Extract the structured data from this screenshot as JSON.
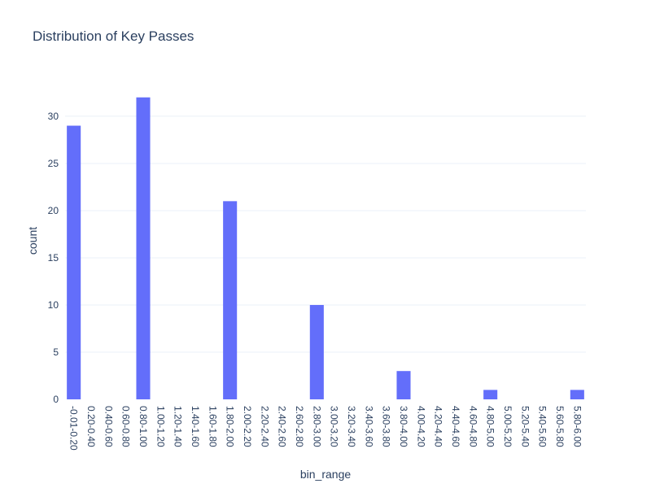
{
  "chart_data": {
    "type": "bar",
    "title": "Distribution of Key Passes",
    "xlabel": "bin_range",
    "ylabel": "count",
    "ylim": [
      0,
      33.7
    ],
    "yticks": [
      0,
      5,
      10,
      15,
      20,
      25,
      30
    ],
    "grid": true,
    "bar_color": "#636efa",
    "categories": [
      "-0.01-0.20",
      "0.20-0.40",
      "0.40-0.60",
      "0.60-0.80",
      "0.80-1.00",
      "1.00-1.20",
      "1.20-1.40",
      "1.40-1.60",
      "1.60-1.80",
      "1.80-2.00",
      "2.00-2.20",
      "2.20-2.40",
      "2.40-2.60",
      "2.60-2.80",
      "2.80-3.00",
      "3.00-3.20",
      "3.20-3.40",
      "3.40-3.60",
      "3.60-3.80",
      "3.80-4.00",
      "4.00-4.20",
      "4.20-4.40",
      "4.40-4.60",
      "4.60-4.80",
      "4.80-5.00",
      "5.00-5.20",
      "5.20-5.40",
      "5.40-5.60",
      "5.60-5.80",
      "5.80-6.00"
    ],
    "values": [
      29,
      0,
      0,
      0,
      32,
      0,
      0,
      0,
      0,
      21,
      0,
      0,
      0,
      0,
      10,
      0,
      0,
      0,
      0,
      3,
      0,
      0,
      0,
      0,
      1,
      0,
      0,
      0,
      0,
      1
    ]
  }
}
